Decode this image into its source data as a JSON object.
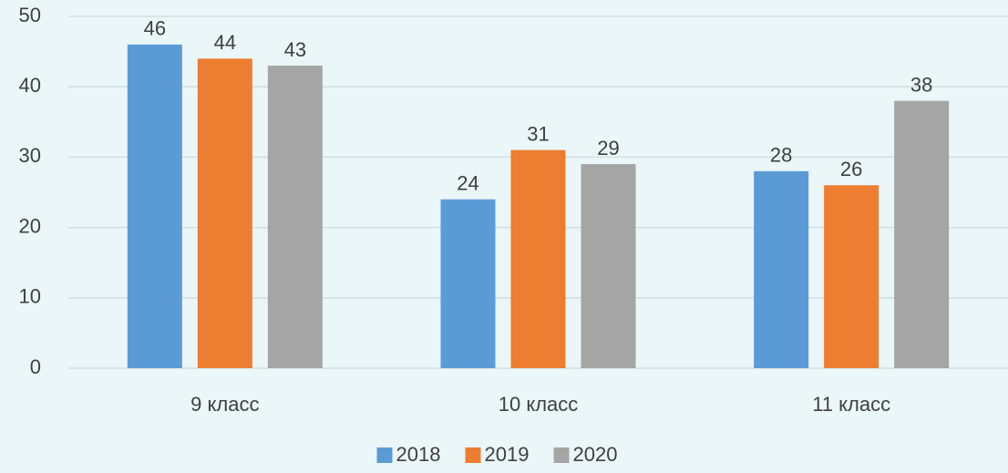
{
  "chart_data": {
    "type": "bar",
    "categories": [
      "9 класс",
      "10 класс",
      "11 класс"
    ],
    "series": [
      {
        "name": "2018",
        "color": "#5b9bd5",
        "values": [
          46,
          24,
          28
        ]
      },
      {
        "name": "2019",
        "color": "#ed7d31",
        "values": [
          44,
          31,
          26
        ]
      },
      {
        "name": "2020",
        "color": "#a5a5a5",
        "values": [
          43,
          29,
          38
        ]
      }
    ],
    "ylim": [
      0,
      50
    ],
    "yticks": [
      0,
      10,
      20,
      30,
      40,
      50
    ],
    "grid": true,
    "legend": "bottom"
  }
}
